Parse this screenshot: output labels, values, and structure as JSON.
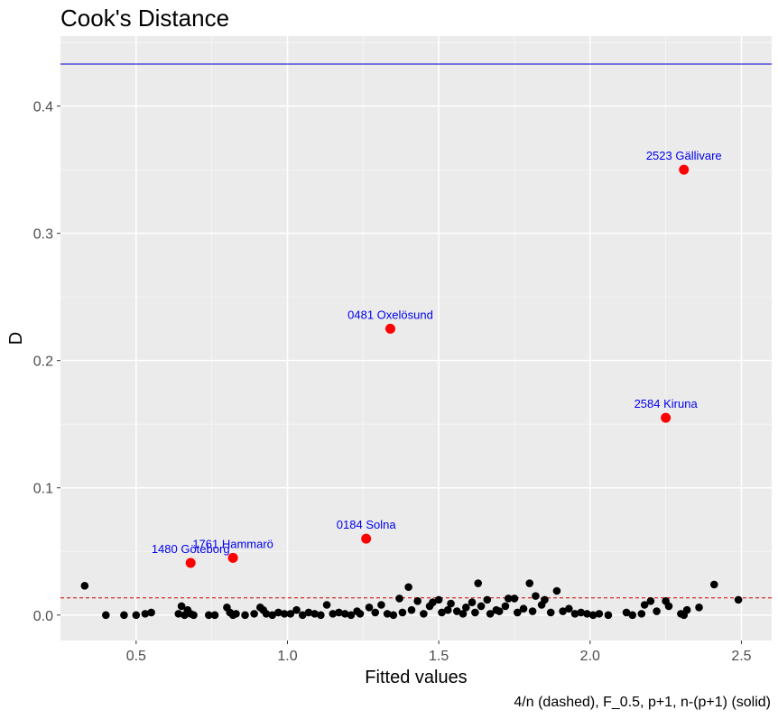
{
  "chart_data": {
    "type": "scatter",
    "title": "Cook's Distance",
    "xlabel": "Fitted values",
    "ylabel": "D",
    "caption": "4/n (dashed), F_0.5, p+1, n-(p+1) (solid)",
    "xlim": [
      0.25,
      2.6
    ],
    "ylim": [
      -0.02,
      0.455
    ],
    "x_ticks": [
      0.5,
      1.0,
      1.5,
      2.0,
      2.5
    ],
    "x_tick_labels": [
      "0.5",
      "1.0",
      "1.5",
      "2.0",
      "2.5"
    ],
    "y_ticks": [
      0.0,
      0.1,
      0.2,
      0.3,
      0.4
    ],
    "y_tick_labels": [
      "0.0",
      "0.1",
      "0.2",
      "0.3",
      "0.4"
    ],
    "grid": true,
    "background_color": "#ebebeb",
    "reference_lines": [
      {
        "style": "dashed",
        "y": 0.0135,
        "color": "#cc0000"
      },
      {
        "style": "solid",
        "y": 0.433,
        "color": "#0000cc"
      }
    ],
    "highlighted_points": [
      {
        "label": "2523 Gällivare",
        "x": 2.31,
        "y": 0.35
      },
      {
        "label": "0481 Oxelösund",
        "x": 1.34,
        "y": 0.225
      },
      {
        "label": "2584 Kiruna",
        "x": 2.25,
        "y": 0.155
      },
      {
        "label": "0184 Solna",
        "x": 1.26,
        "y": 0.06
      },
      {
        "label": "1761 Hammarö",
        "x": 0.82,
        "y": 0.045
      },
      {
        "label": "1480 Göteborg",
        "x": 0.68,
        "y": 0.041
      }
    ],
    "highlight_color": "#ff0000",
    "point_color": "#000000",
    "points": [
      {
        "x": 0.33,
        "y": 0.023
      },
      {
        "x": 0.4,
        "y": 0.0
      },
      {
        "x": 0.46,
        "y": 0.0
      },
      {
        "x": 0.5,
        "y": 0.0
      },
      {
        "x": 0.53,
        "y": 0.001
      },
      {
        "x": 0.55,
        "y": 0.002
      },
      {
        "x": 0.64,
        "y": 0.001
      },
      {
        "x": 0.65,
        "y": 0.007
      },
      {
        "x": 0.66,
        "y": 0.0
      },
      {
        "x": 0.67,
        "y": 0.004
      },
      {
        "x": 0.68,
        "y": 0.001
      },
      {
        "x": 0.69,
        "y": 0.0
      },
      {
        "x": 0.74,
        "y": 0.0
      },
      {
        "x": 0.76,
        "y": 0.0
      },
      {
        "x": 0.8,
        "y": 0.006
      },
      {
        "x": 0.81,
        "y": 0.002
      },
      {
        "x": 0.82,
        "y": 0.0
      },
      {
        "x": 0.83,
        "y": 0.001
      },
      {
        "x": 0.86,
        "y": 0.0
      },
      {
        "x": 0.89,
        "y": 0.001
      },
      {
        "x": 0.91,
        "y": 0.006
      },
      {
        "x": 0.92,
        "y": 0.004
      },
      {
        "x": 0.93,
        "y": 0.001
      },
      {
        "x": 0.95,
        "y": 0.0
      },
      {
        "x": 0.97,
        "y": 0.002
      },
      {
        "x": 0.99,
        "y": 0.001
      },
      {
        "x": 1.01,
        "y": 0.001
      },
      {
        "x": 1.03,
        "y": 0.004
      },
      {
        "x": 1.05,
        "y": 0.0
      },
      {
        "x": 1.07,
        "y": 0.002
      },
      {
        "x": 1.09,
        "y": 0.001
      },
      {
        "x": 1.11,
        "y": 0.0
      },
      {
        "x": 1.13,
        "y": 0.008
      },
      {
        "x": 1.15,
        "y": 0.001
      },
      {
        "x": 1.17,
        "y": 0.002
      },
      {
        "x": 1.19,
        "y": 0.001
      },
      {
        "x": 1.21,
        "y": 0.0
      },
      {
        "x": 1.23,
        "y": 0.003
      },
      {
        "x": 1.24,
        "y": 0.001
      },
      {
        "x": 1.27,
        "y": 0.006
      },
      {
        "x": 1.29,
        "y": 0.002
      },
      {
        "x": 1.31,
        "y": 0.008
      },
      {
        "x": 1.33,
        "y": 0.001
      },
      {
        "x": 1.35,
        "y": 0.0
      },
      {
        "x": 1.37,
        "y": 0.013
      },
      {
        "x": 1.38,
        "y": 0.002
      },
      {
        "x": 1.4,
        "y": 0.022
      },
      {
        "x": 1.41,
        "y": 0.004
      },
      {
        "x": 1.43,
        "y": 0.011
      },
      {
        "x": 1.45,
        "y": 0.001
      },
      {
        "x": 1.47,
        "y": 0.007
      },
      {
        "x": 1.48,
        "y": 0.01
      },
      {
        "x": 1.5,
        "y": 0.012
      },
      {
        "x": 1.51,
        "y": 0.002
      },
      {
        "x": 1.53,
        "y": 0.004
      },
      {
        "x": 1.54,
        "y": 0.009
      },
      {
        "x": 1.56,
        "y": 0.003
      },
      {
        "x": 1.58,
        "y": 0.001
      },
      {
        "x": 1.59,
        "y": 0.006
      },
      {
        "x": 1.61,
        "y": 0.01
      },
      {
        "x": 1.62,
        "y": 0.002
      },
      {
        "x": 1.63,
        "y": 0.025
      },
      {
        "x": 1.64,
        "y": 0.007
      },
      {
        "x": 1.66,
        "y": 0.012
      },
      {
        "x": 1.67,
        "y": 0.001
      },
      {
        "x": 1.69,
        "y": 0.004
      },
      {
        "x": 1.7,
        "y": 0.003
      },
      {
        "x": 1.72,
        "y": 0.007
      },
      {
        "x": 1.73,
        "y": 0.013
      },
      {
        "x": 1.75,
        "y": 0.013
      },
      {
        "x": 1.76,
        "y": 0.002
      },
      {
        "x": 1.78,
        "y": 0.005
      },
      {
        "x": 1.8,
        "y": 0.025
      },
      {
        "x": 1.81,
        "y": 0.003
      },
      {
        "x": 1.82,
        "y": 0.015
      },
      {
        "x": 1.84,
        "y": 0.008
      },
      {
        "x": 1.85,
        "y": 0.012
      },
      {
        "x": 1.87,
        "y": 0.002
      },
      {
        "x": 1.89,
        "y": 0.019
      },
      {
        "x": 1.91,
        "y": 0.003
      },
      {
        "x": 1.93,
        "y": 0.005
      },
      {
        "x": 1.95,
        "y": 0.001
      },
      {
        "x": 1.97,
        "y": 0.002
      },
      {
        "x": 1.99,
        "y": 0.001
      },
      {
        "x": 2.01,
        "y": 0.0
      },
      {
        "x": 2.03,
        "y": 0.001
      },
      {
        "x": 2.06,
        "y": 0.0
      },
      {
        "x": 2.12,
        "y": 0.002
      },
      {
        "x": 2.14,
        "y": 0.0
      },
      {
        "x": 2.17,
        "y": 0.001
      },
      {
        "x": 2.18,
        "y": 0.008
      },
      {
        "x": 2.2,
        "y": 0.011
      },
      {
        "x": 2.22,
        "y": 0.003
      },
      {
        "x": 2.25,
        "y": 0.011
      },
      {
        "x": 2.26,
        "y": 0.007
      },
      {
        "x": 2.3,
        "y": 0.001
      },
      {
        "x": 2.31,
        "y": 0.0
      },
      {
        "x": 2.32,
        "y": 0.004
      },
      {
        "x": 2.36,
        "y": 0.006
      },
      {
        "x": 2.41,
        "y": 0.024
      },
      {
        "x": 2.49,
        "y": 0.012
      }
    ]
  }
}
